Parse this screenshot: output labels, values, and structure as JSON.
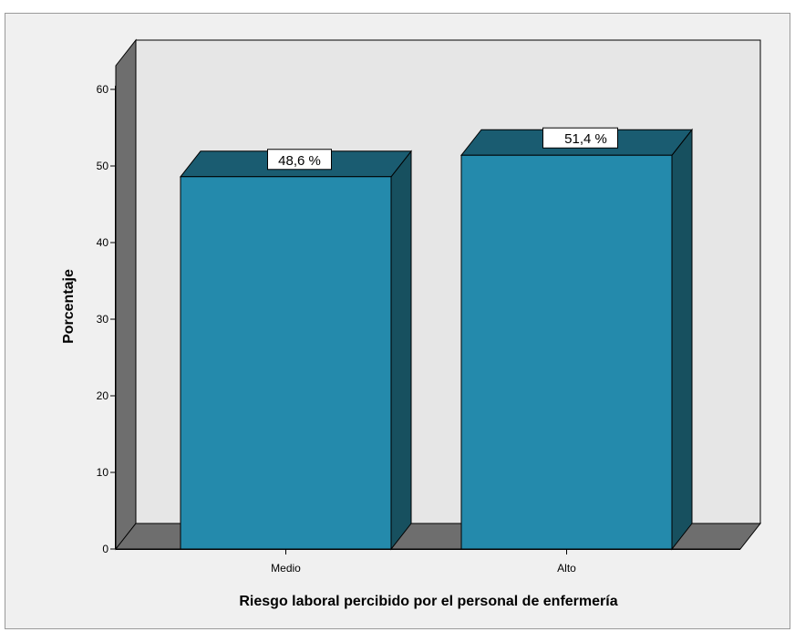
{
  "chart_data": {
    "type": "bar",
    "categories": [
      "Medio",
      "Alto"
    ],
    "values": [
      48.6,
      51.4
    ],
    "data_labels": [
      "48,6 %",
      "51,4 %"
    ],
    "title": "",
    "xlabel": "Riesgo laboral percibido por el personal de enfermería",
    "ylabel": "Porcentaje",
    "ylim": [
      0,
      60
    ],
    "yticks": [
      0,
      10,
      20,
      30,
      40,
      50,
      60
    ],
    "grid": false,
    "style": "3d",
    "colors": {
      "bar_front": "#248AAC",
      "bar_top": "#1A5C71",
      "bar_side": "#17505F",
      "wall": "#E6E6E6",
      "floor": "#6E6E6E",
      "side_wall": "#6E6E6E",
      "frame_bg": "#F0F0F0"
    }
  }
}
